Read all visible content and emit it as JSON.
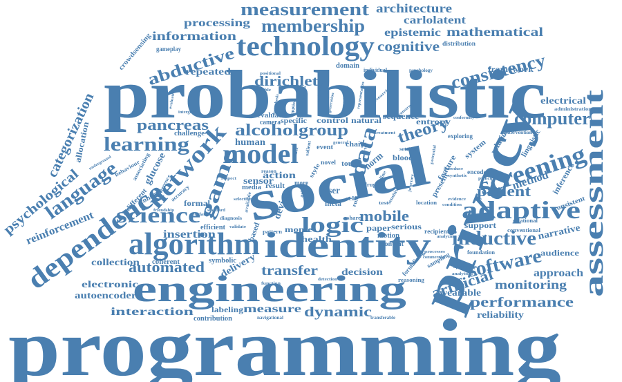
{
  "colors": {
    "word": "#4a7fb0",
    "background": "#ffffff"
  },
  "words": {
    "programming": "programming",
    "probabilistic": "probabilistic",
    "social": "social",
    "privacy": "privacy",
    "engineering": "engineering",
    "identity": "identity",
    "algorithm": "algorithm",
    "dependence": "dependence",
    "assessment": "assessment",
    "technology": "technology",
    "adaptive": "adaptive",
    "screening": "screening",
    "model": "model",
    "network": "network",
    "measurement": "measurement",
    "membership": "membership",
    "consistency": "consistency",
    "mathematical": "mathematical",
    "abductive": "abductive",
    "learning": "learning",
    "language": "language",
    "science": "science",
    "logic": "logic",
    "inductive": "inductive",
    "software": "software",
    "computer": "computer",
    "game": "game",
    "data": "data",
    "theory": "theory",
    "alcohol": "alcohol",
    "group": "group",
    "pancreas": "pancreas",
    "categorization": "categorization",
    "psychological": "psychological",
    "reinforcement": "reinforcement",
    "patient": "patient",
    "mobile": "mobile",
    "automated": "automated",
    "artificial": "artificial",
    "performance": "performance",
    "monitoring": "monitoring",
    "transfer": "transfer",
    "dynamic": "dynamic",
    "measure": "measure",
    "interaction": "interaction",
    "electronic": "electronic",
    "autoencoders": "autoencoders",
    "collection": "collection",
    "insertion": "insertion",
    "architecture": "architecture",
    "carlolatent": "carlolatent",
    "epistemic": "epistemic",
    "cognitive": "cognitive",
    "information": "information",
    "processing": "processing",
    "dirichlet": "dirichlet",
    "repeated": "repeated",
    "framework": "framework",
    "electrical": "electrical",
    "method": "method",
    "approach": "approach",
    "narrative": "narrative",
    "support": "support",
    "audience": "audience",
    "wearable": "wearable",
    "reliability": "reliability",
    "decision": "decision",
    "delivery": "delivery",
    "health": "health",
    "monte": "monte",
    "paper": "paper",
    "serious": "serious",
    "human": "human",
    "sensor": "sensor",
    "action": "action",
    "control": "control",
    "natural": "natural",
    "sequence": "sequence",
    "entropy": "entropy",
    "evaluate": "evaluate",
    "specific": "specific",
    "camera": "camera",
    "allocation": "allocation",
    "crowdsensing": "crowdsensing",
    "challenge": "challenge",
    "glucose": "glucose",
    "concept": "concept",
    "formal": "formal",
    "different": "different",
    "efficient": "efficient",
    "symbolic": "symbolic",
    "coherent": "coherent",
    "labeling": "labeling",
    "contribution": "contribution",
    "navigational": "navigational",
    "transferable": "transferable",
    "motion": "motion",
    "content": "content",
    "user": "user",
    "meta": "meta",
    "device": "device",
    "chain": "chain",
    "norm": "norm",
    "blood": "blood",
    "touch": "touch",
    "media": "media",
    "result": "result",
    "relation": "relation",
    "linguistic": "linguistic",
    "inference": "inference",
    "consistent": "consistent",
    "feature": "feature",
    "present": "present",
    "system": "system",
    "exploring": "exploring",
    "encoder": "encoder",
    "recipient": "recipient",
    "formalizing": "formalizing",
    "sampling": "sampling",
    "reasoning": "reasoning",
    "foundation": "foundation",
    "relational": "relational",
    "conventional": "conventional",
    "domain": "domain",
    "individual": "individual",
    "psychology": "psychology",
    "gameplay": "gameplay",
    "distribution": "distribution",
    "administration": "administration",
    "intervention": "intervention",
    "location": "location",
    "based": "based",
    "pattern": "pattern",
    "share": "share",
    "more": "more",
    "event": "event",
    "novel": "novel",
    "diagnosis": "diagnosis",
    "validate": "validate",
    "friendship": "friendship",
    "accuracy": "accuracy",
    "behaviour": "behaviour",
    "associating": "associating",
    "coherence": "coherence",
    "underground": "underground",
    "intergroup": "intergroup",
    "evaluation": "evaluation",
    "positional": "positional",
    "reusable": "reusable",
    "hypothesis": "hypothesis",
    "properties": "properties",
    "uncollapsed": "uncollapsed",
    "estimation": "estimation",
    "representation": "representation",
    "research": "research",
    "conformity": "conformity",
    "setting": "setting",
    "drug": "drug",
    "function": "function",
    "detection": "detection",
    "guidance": "guidance",
    "standard": "standard",
    "analyzing": "analyzing",
    "application": "application",
    "analytical": "analytical",
    "condition": "condition",
    "evidence": "evidence",
    "introduce": "introduce",
    "synthetic": "synthetic",
    "principle": "principle",
    "commercial": "commercial",
    "journey": "journey",
    "potential": "potential",
    "processes": "processes",
    "treatment": "treatment",
    "self": "self",
    "test": "test",
    "style": "style",
    "order": "order",
    "aside": "aside",
    "general": "general",
    "reason": "reason",
    "respect": "respect",
    "selective": "selective",
    "available": "available",
    "applied": "applied",
    "generation": "generation",
    "construct": "construct",
    "salient": "salient",
    "online": "online",
    "sensitive": "sensitive",
    "rule": "rule",
    "random": "random",
    "vector": "vector"
  }
}
